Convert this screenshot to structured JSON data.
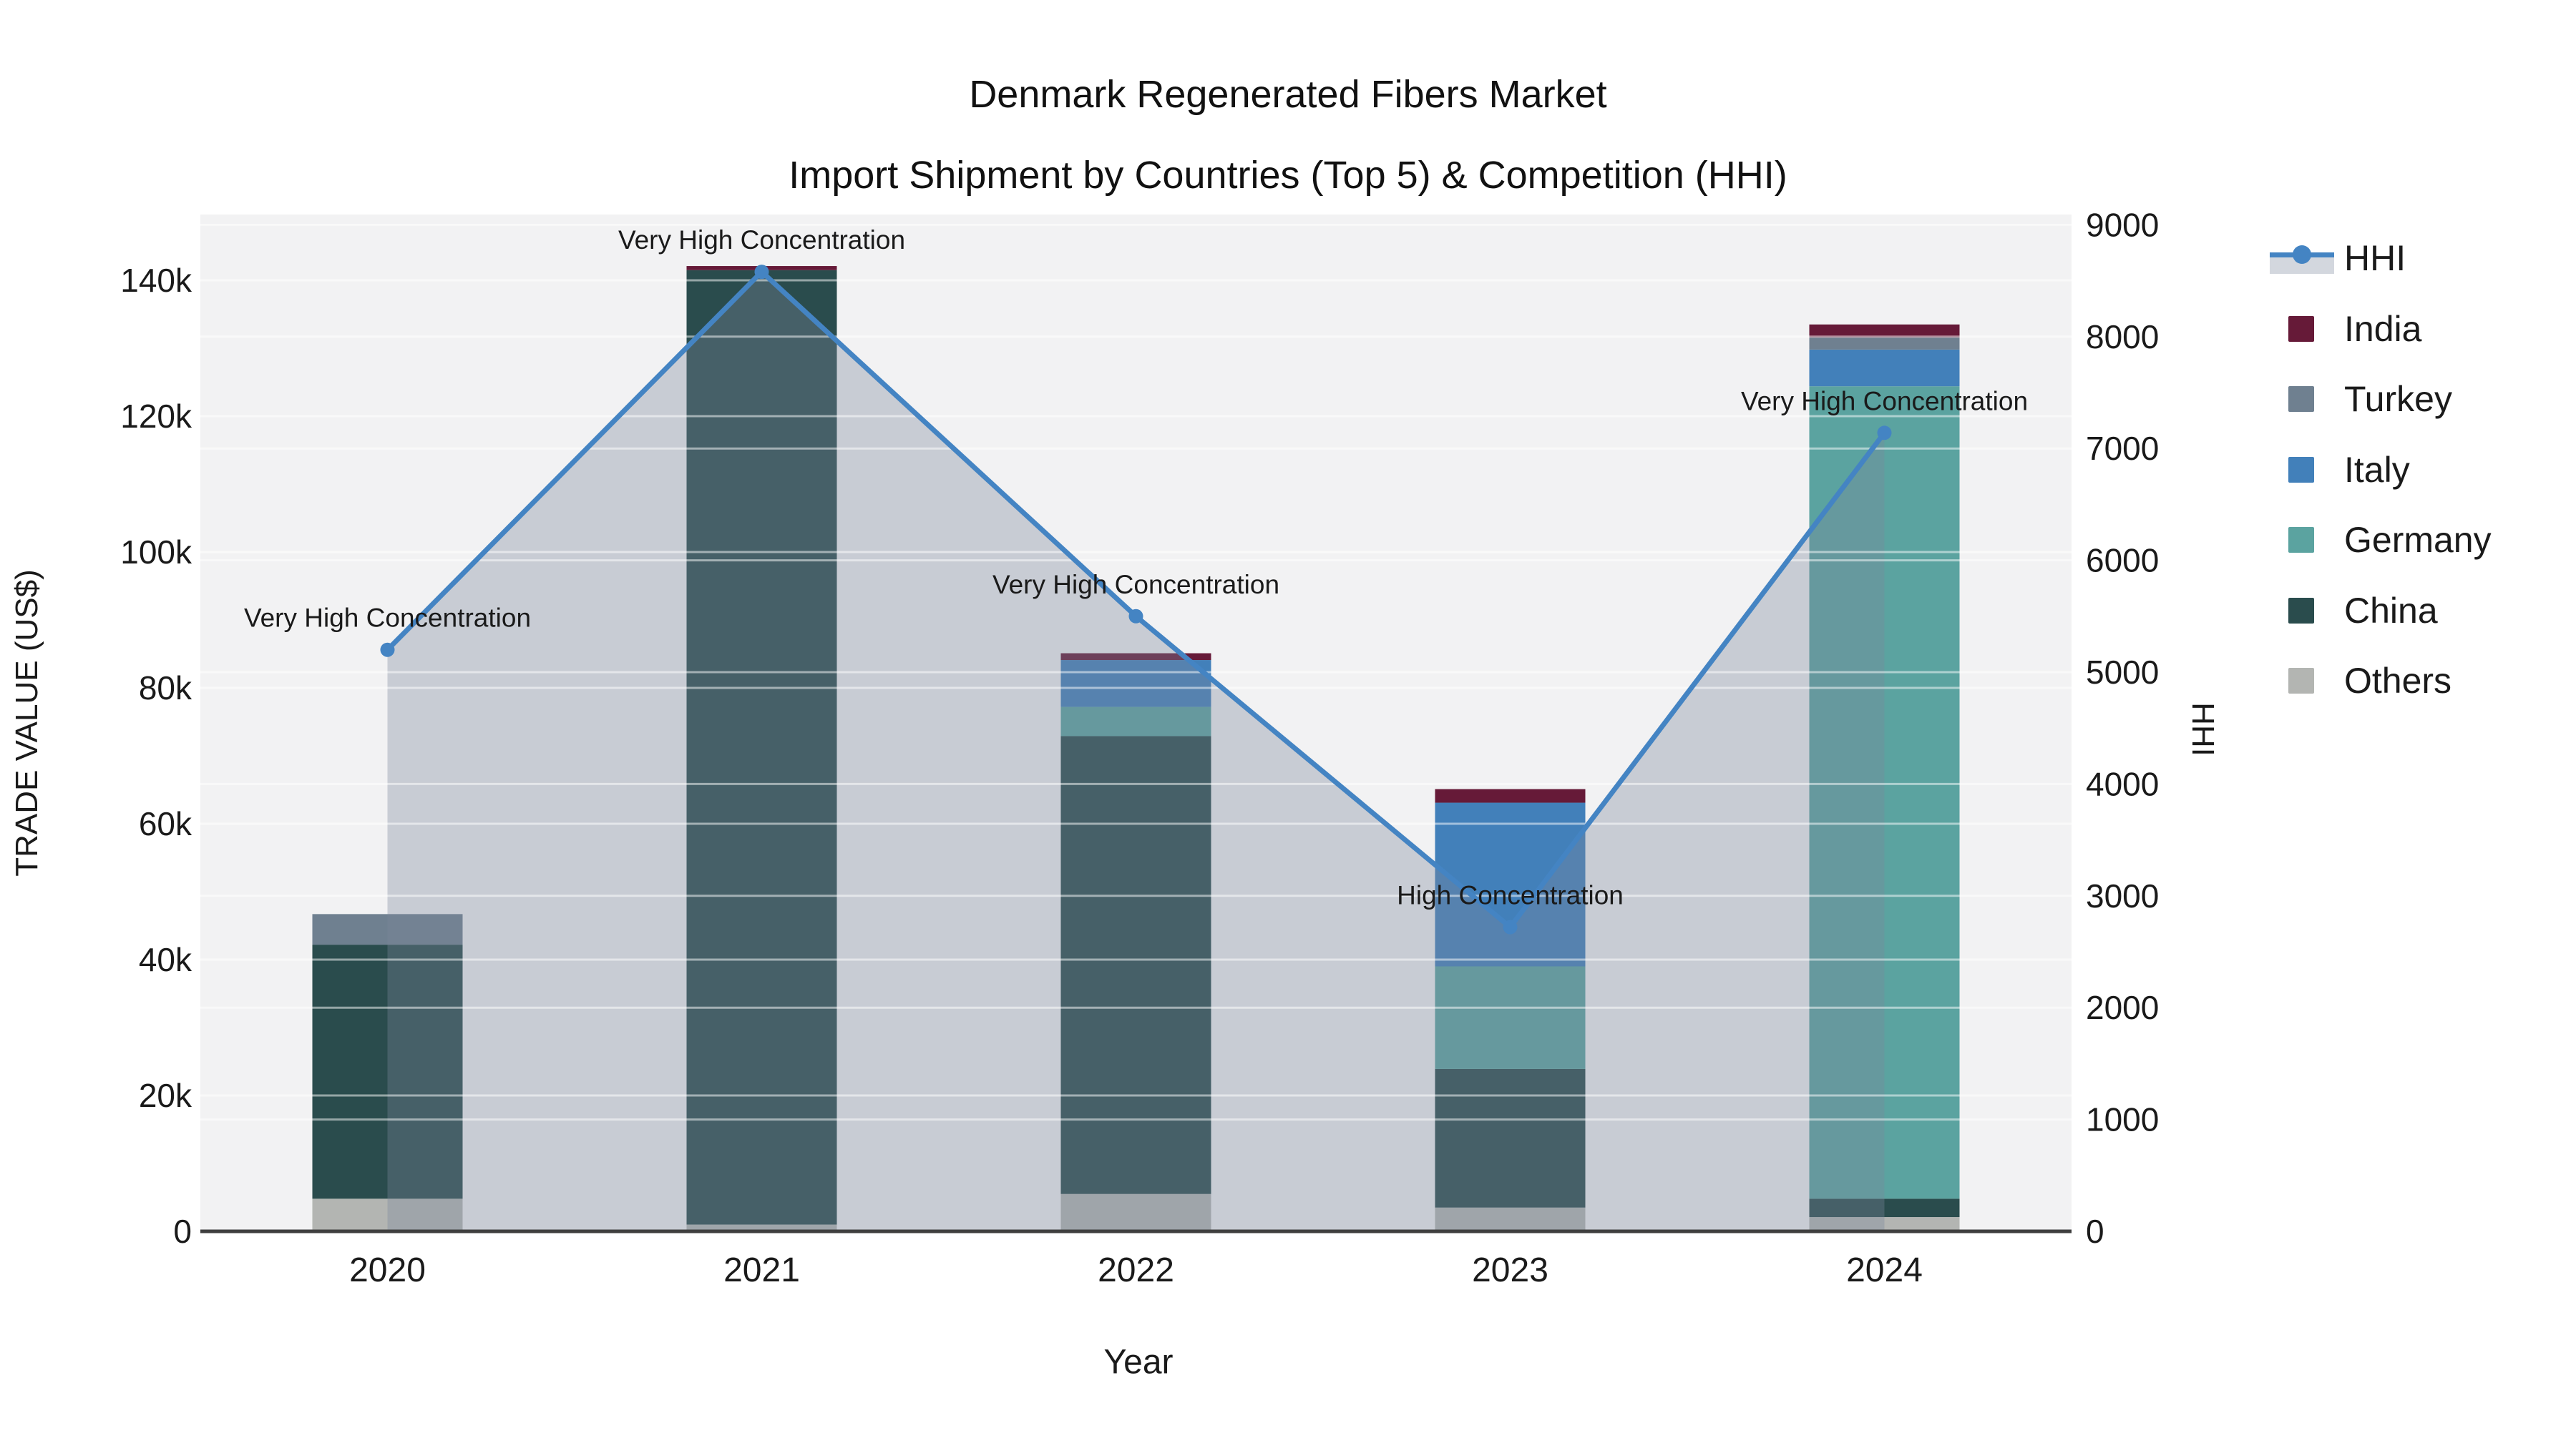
{
  "title": {
    "line1": "Denmark Regenerated Fibers Market",
    "line2": "Import Shipment by Countries (Top 5) & Competition (HHI)"
  },
  "axes": {
    "x": {
      "title": "Year",
      "categories": [
        "2020",
        "2021",
        "2022",
        "2023",
        "2024"
      ]
    },
    "y_left": {
      "title": "TRADE VALUE (US$)",
      "tick_labels": [
        "0",
        "20k",
        "40k",
        "60k",
        "80k",
        "100k",
        "120k",
        "140k"
      ],
      "tick_values": [
        0,
        20000,
        40000,
        60000,
        80000,
        100000,
        120000,
        140000
      ]
    },
    "y_right": {
      "title": "HHI",
      "tick_labels": [
        "0",
        "1000",
        "2000",
        "3000",
        "4000",
        "5000",
        "6000",
        "7000",
        "8000",
        "9000"
      ],
      "tick_values": [
        0,
        1000,
        2000,
        3000,
        4000,
        5000,
        6000,
        7000,
        8000,
        9000
      ]
    }
  },
  "legend": {
    "position": "right",
    "items": [
      {
        "label": "HHI",
        "type": "line",
        "color": "#4484c3",
        "band_color": "#d3d7de"
      },
      {
        "label": "India",
        "type": "swatch",
        "color": "#661a38"
      },
      {
        "label": "Turkey",
        "type": "swatch",
        "color": "#6f8090"
      },
      {
        "label": "Italy",
        "type": "swatch",
        "color": "#4280ba"
      },
      {
        "label": "Germany",
        "type": "swatch",
        "color": "#5ba3a0"
      },
      {
        "label": "China",
        "type": "swatch",
        "color": "#2a4c4d"
      },
      {
        "label": "Others",
        "type": "swatch",
        "color": "#b3b5b2"
      }
    ]
  },
  "chart_data": {
    "type": "bar",
    "subtype": "stacked-bars-with-line-overlay",
    "categories": [
      "2020",
      "2021",
      "2022",
      "2023",
      "2024"
    ],
    "bar_unit": "US$",
    "series": [
      {
        "name": "Others",
        "color": "#b3b5b2",
        "values": [
          4800,
          1000,
          5500,
          3500,
          2100
        ]
      },
      {
        "name": "China",
        "color": "#2a4c4d",
        "values": [
          37400,
          140500,
          67400,
          20400,
          2700
        ]
      },
      {
        "name": "Germany",
        "color": "#5ba3a0",
        "values": [
          0,
          0,
          4300,
          15100,
          119600
        ]
      },
      {
        "name": "Italy",
        "color": "#4280ba",
        "values": [
          0,
          0,
          6900,
          24100,
          5400
        ]
      },
      {
        "name": "Turkey",
        "color": "#6f8090",
        "values": [
          4500,
          0,
          0,
          0,
          1800
        ]
      },
      {
        "name": "India",
        "color": "#661a38",
        "values": [
          0,
          600,
          1000,
          2000,
          1900
        ]
      }
    ],
    "bar_totals": [
      46700,
      142100,
      85100,
      65100,
      133500
    ],
    "line_series": {
      "name": "HHI",
      "axis": "right",
      "color": "#4484c3",
      "fill_color": "rgba(124,135,156,0.35)",
      "values": [
        5200,
        8580,
        5500,
        2720,
        7140
      ]
    },
    "annotations": [
      {
        "category": "2020",
        "text": "Very High Concentration"
      },
      {
        "category": "2021",
        "text": "Very High Concentration"
      },
      {
        "category": "2022",
        "text": "Very High Concentration"
      },
      {
        "category": "2023",
        "text": "High Concentration"
      },
      {
        "category": "2024",
        "text": "Very High Concentration"
      }
    ],
    "title": "Denmark Regenerated Fibers Market — Import Shipment by Countries (Top 5) & Competition (HHI)",
    "xlabel": "Year",
    "ylabel_left": "TRADE VALUE (US$)",
    "ylabel_right": "HHI",
    "ylim_left": [
      0,
      149700
    ],
    "ylim_right": [
      0,
      9092
    ],
    "grid": true,
    "legend_position": "right"
  },
  "colors": {
    "figure_bg": "#ffffff",
    "plot_bg": "#f2f2f3",
    "gridline": "rgba(255,255,255,0.5)",
    "axis_line": "#3f3f3f",
    "tick_text": "#1a1a1a",
    "annotation_text": "#1a1a1a"
  }
}
